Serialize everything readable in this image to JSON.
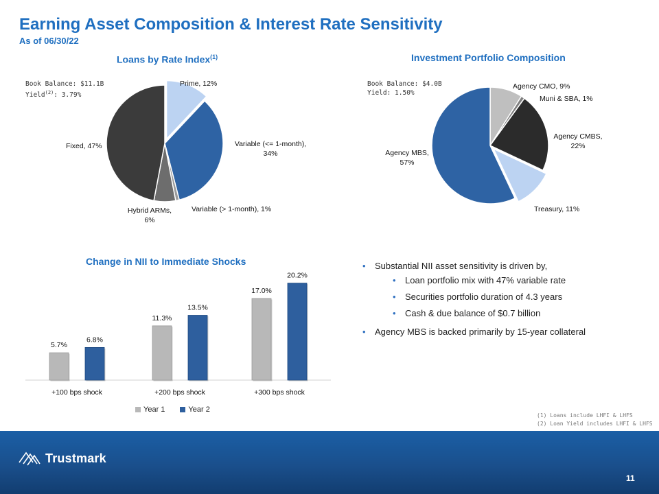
{
  "header": {
    "title": "Earning Asset Composition & Interest Rate Sensitivity",
    "subtitle": "As of 06/30/22"
  },
  "loans": {
    "title": "Loans by Rate Index",
    "title_sup": "(1)",
    "book_balance": "Book Balance: $11.1B",
    "yield_prefix": "Yield",
    "yield_sup": "(2)",
    "yield_suffix": ": 3.79%"
  },
  "investments": {
    "title": "Investment Portfolio Composition",
    "book_balance": "Book Balance: $4.0B",
    "yield": "Yield: 1.50%"
  },
  "nii": {
    "title": "Change in NII to Immediate Shocks"
  },
  "bullets": {
    "main1": "Substantial NII asset sensitivity is driven by,",
    "sub": [
      "Loan portfolio mix with 47% variable rate",
      "Securities portfolio duration of 4.3 years",
      "Cash & due balance of $0.7 billion"
    ],
    "main2": "Agency MBS is backed primarily by 15-year collateral"
  },
  "footnotes": {
    "note1": "(1) Loans include LHFI & LHFS",
    "note2": "(2) Loan Yield includes LHFI & LHFS"
  },
  "footer": {
    "brand": "Trustmark",
    "page_number": "11"
  },
  "chart_data": [
    {
      "type": "pie",
      "title": "Loans by Rate Index",
      "slices": [
        {
          "label": "Prime, 12%",
          "value": 12,
          "color": "#bcd3f2",
          "exploded": true
        },
        {
          "label": "Variable (<= 1-month), 34%",
          "value": 34,
          "color": "#2e63a4",
          "exploded": false
        },
        {
          "label": "Variable (> 1-month), 1%",
          "value": 1,
          "color": "#9a9a9a",
          "exploded": false
        },
        {
          "label": "Hybrid ARMs, 6%",
          "value": 6,
          "color": "#6d6d6d",
          "exploded": false
        },
        {
          "label": "Fixed, 47%",
          "value": 47,
          "color": "#3b3b3b",
          "exploded": false
        }
      ]
    },
    {
      "type": "pie",
      "title": "Investment Portfolio Composition",
      "slices": [
        {
          "label": "Agency CMO, 9%",
          "value": 9,
          "color": "#bfbfbf",
          "exploded": false
        },
        {
          "label": "Muni & SBA, 1%",
          "value": 1,
          "color": "#7f7f7f",
          "exploded": false
        },
        {
          "label": "Agency CMBS, 22%",
          "value": 22,
          "color": "#2b2b2b",
          "exploded": false
        },
        {
          "label": "Treasury, 11%",
          "value": 11,
          "color": "#bcd3f2",
          "exploded": true
        },
        {
          "label": "Agency MBS, 57%",
          "value": 57,
          "color": "#2e63a4",
          "exploded": false
        }
      ]
    },
    {
      "type": "bar",
      "title": "Change in NII to Immediate Shocks",
      "categories": [
        "+100 bps shock",
        "+200 bps shock",
        "+300 bps shock"
      ],
      "series": [
        {
          "name": "Year 1",
          "values": [
            5.7,
            11.3,
            17.0
          ],
          "labels": [
            "5.7%",
            "11.3%",
            "17.0%"
          ],
          "color": "#b8b8b8"
        },
        {
          "name": "Year 2",
          "values": [
            6.8,
            13.5,
            20.2
          ],
          "labels": [
            "6.8%",
            "13.5%",
            "20.2%"
          ],
          "color": "#2e5f9e"
        }
      ],
      "ylim": [
        0,
        22
      ],
      "grid": false,
      "legend": "bottom"
    }
  ]
}
